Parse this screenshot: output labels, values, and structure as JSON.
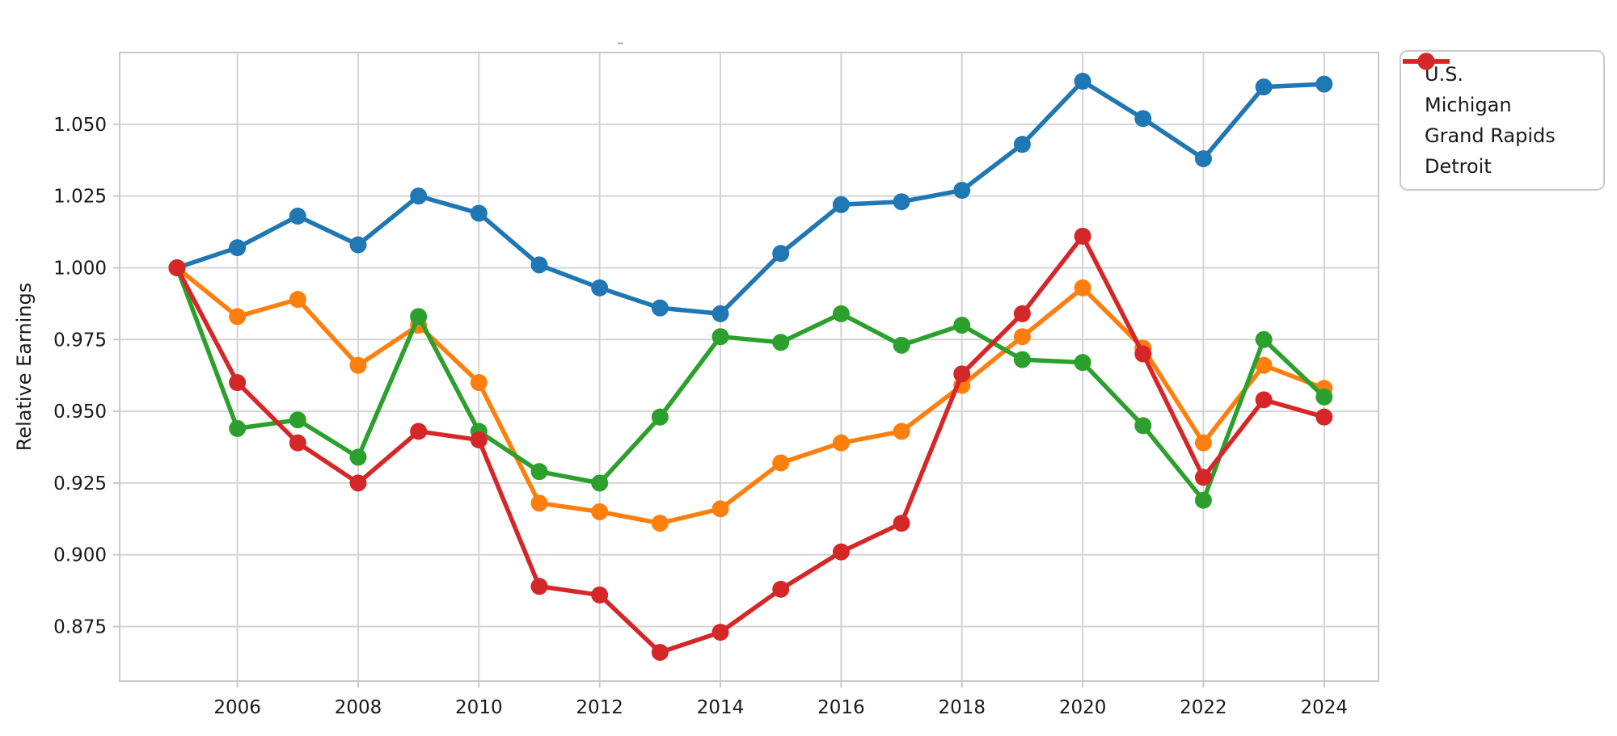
{
  "artifacts": {
    "top_dash": "-"
  },
  "chart_data": {
    "type": "line",
    "title": "",
    "xlabel": "",
    "ylabel": "Relative Earnings",
    "x": [
      2005,
      2006,
      2007,
      2008,
      2009,
      2010,
      2011,
      2012,
      2013,
      2014,
      2015,
      2016,
      2017,
      2018,
      2019,
      2020,
      2021,
      2022,
      2023,
      2024
    ],
    "series": [
      {
        "name": "U.S.",
        "color": "#1f77b4",
        "values": [
          1.0,
          1.007,
          1.018,
          1.008,
          1.025,
          1.019,
          1.001,
          0.993,
          0.986,
          0.984,
          1.005,
          1.022,
          1.023,
          1.027,
          1.043,
          1.065,
          1.052,
          1.038,
          1.063,
          1.064
        ]
      },
      {
        "name": "Michigan",
        "color": "#ff7f0e",
        "values": [
          1.0,
          0.983,
          0.989,
          0.966,
          0.98,
          0.96,
          0.918,
          0.915,
          0.911,
          0.916,
          0.932,
          0.939,
          0.943,
          0.959,
          0.976,
          0.993,
          0.972,
          0.939,
          0.966,
          0.958
        ]
      },
      {
        "name": "Grand Rapids",
        "color": "#2ca02c",
        "values": [
          1.0,
          0.944,
          0.947,
          0.934,
          0.983,
          0.943,
          0.929,
          0.925,
          0.948,
          0.976,
          0.974,
          0.984,
          0.973,
          0.98,
          0.968,
          0.967,
          0.945,
          0.919,
          0.975,
          0.955
        ]
      },
      {
        "name": "Detroit",
        "color": "#d62728",
        "values": [
          1.0,
          0.96,
          0.939,
          0.925,
          0.943,
          0.94,
          0.889,
          0.886,
          0.866,
          0.873,
          0.888,
          0.901,
          0.911,
          0.963,
          0.984,
          1.011,
          0.97,
          0.927,
          0.954,
          0.948
        ]
      }
    ],
    "xlim": [
      2004.05,
      2024.9
    ],
    "ylim": [
      0.856,
      1.075
    ],
    "xticks": [
      2006,
      2008,
      2010,
      2012,
      2014,
      2016,
      2018,
      2020,
      2022,
      2024
    ],
    "xtick_labels": [
      "2006",
      "2008",
      "2010",
      "2012",
      "2014",
      "2016",
      "2018",
      "2020",
      "2022",
      "2024"
    ],
    "yticks": [
      0.875,
      0.9,
      0.925,
      0.95,
      0.975,
      1.0,
      1.025,
      1.05
    ],
    "ytick_labels": [
      "0.875",
      "0.900",
      "0.925",
      "0.950",
      "0.975",
      "1.000",
      "1.025",
      "1.050"
    ],
    "grid": true,
    "legend_position": "outside upper right",
    "colors": {
      "background": "#ffffff",
      "grid": "#d4d4d4",
      "spine": "#c9c9c9",
      "tick": "#c9c9c9",
      "text": "#1a1a1a"
    }
  }
}
